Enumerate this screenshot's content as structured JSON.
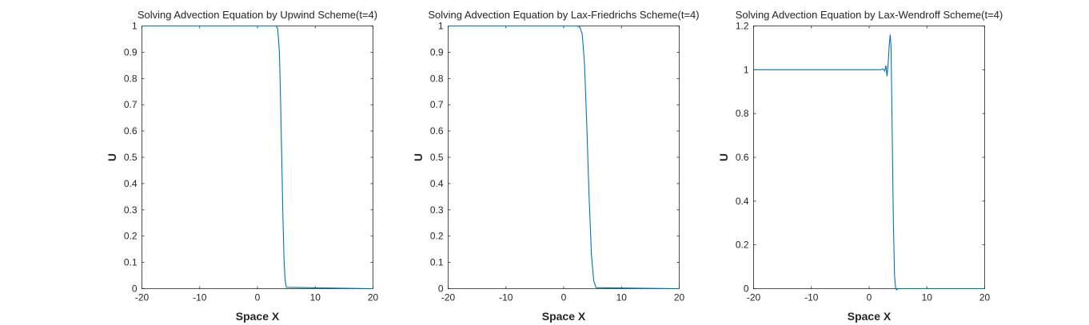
{
  "chart_data": [
    {
      "type": "line",
      "title": "Solving Advection Equation by Upwind Scheme(t=4)",
      "xlabel": "Space X",
      "ylabel": "U",
      "xlim": [
        -20,
        20
      ],
      "ylim": [
        0,
        1
      ],
      "xticks": [
        "-20",
        "-10",
        "0",
        "10",
        "20"
      ],
      "yticks": [
        "0",
        "0.1",
        "0.2",
        "0.3",
        "0.4",
        "0.5",
        "0.6",
        "0.7",
        "0.8",
        "0.9",
        "1"
      ],
      "grid": false,
      "color": "#0072BD",
      "series": [
        {
          "x": [
            -20,
            3.2,
            3.5,
            3.8,
            4.0,
            4.2,
            4.4,
            4.6,
            4.8,
            5.0,
            20
          ],
          "y": [
            1,
            1,
            0.99,
            0.9,
            0.72,
            0.5,
            0.28,
            0.11,
            0.03,
            0.005,
            0
          ]
        }
      ]
    },
    {
      "type": "line",
      "title": "Solving Advection Equation by Lax-Friedrichs Scheme(t=4)",
      "xlabel": "Space X",
      "ylabel": "U",
      "xlim": [
        -20,
        20
      ],
      "ylim": [
        0,
        1
      ],
      "xticks": [
        "-20",
        "-10",
        "0",
        "10",
        "20"
      ],
      "yticks": [
        "0",
        "0.1",
        "0.2",
        "0.3",
        "0.4",
        "0.5",
        "0.6",
        "0.7",
        "0.8",
        "0.9",
        "1"
      ],
      "grid": false,
      "color": "#0072BD",
      "series": [
        {
          "x": [
            -20,
            2.4,
            2.8,
            3.2,
            3.6,
            4.0,
            4.4,
            4.8,
            5.2,
            5.6,
            20
          ],
          "y": [
            1,
            1,
            0.995,
            0.97,
            0.86,
            0.62,
            0.35,
            0.13,
            0.03,
            0.004,
            0
          ]
        }
      ]
    },
    {
      "type": "line",
      "title": "Solving Advection Equation by Lax-Wendroff Scheme(t=4)",
      "xlabel": "Space X",
      "ylabel": "U",
      "xlim": [
        -20,
        20
      ],
      "ylim": [
        0,
        1.2
      ],
      "xticks": [
        "-20",
        "-10",
        "0",
        "10",
        "20"
      ],
      "yticks": [
        "0",
        "0.2",
        "0.4",
        "0.6",
        "0.8",
        "1",
        "1.2"
      ],
      "grid": false,
      "color": "#0072BD",
      "series": [
        {
          "x": [
            -20,
            2.0,
            2.4,
            2.7,
            2.9,
            3.1,
            3.3,
            3.5,
            3.65,
            3.8,
            4.0,
            4.2,
            4.4,
            4.6,
            4.8,
            5.0,
            20
          ],
          "y": [
            1,
            1,
            1.003,
            0.995,
            1.02,
            0.97,
            1.03,
            1.12,
            1.16,
            1.1,
            0.7,
            0.3,
            0.06,
            0.0,
            -0.005,
            0.0,
            0
          ]
        }
      ]
    }
  ]
}
